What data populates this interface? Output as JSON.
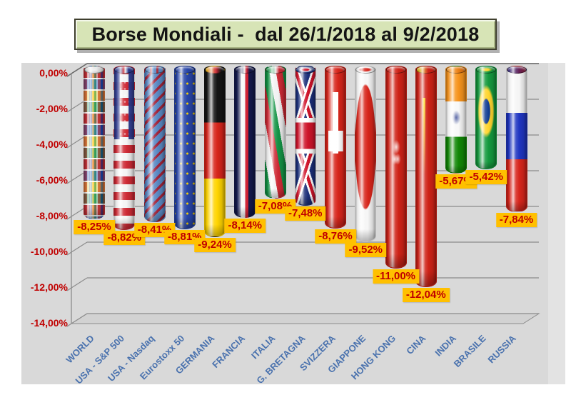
{
  "title": "Borse Mondiali -  dal 26/1/2018 al 9/2/2018",
  "colors": {
    "panel": "#d9d9d9",
    "grid": "#8c8c8c",
    "grid_top": "#666666",
    "floor_fill": "#d2d2d2",
    "y_label": "#c00000",
    "x_label": "#4a72ae",
    "value_bg": "#ffc000",
    "value_text": "#c00000",
    "title_bg": "#d7e4b6"
  },
  "chart_data": {
    "type": "bar",
    "title": "Borse Mondiali -  dal 26/1/2018 al 9/2/2018",
    "categories": [
      "WORLD",
      "USA - S&P 500",
      "USA - Nasdaq",
      "Eurostoxx 50",
      "GERMANIA",
      "FRANCIA",
      "ITALIA",
      "G. BRETAGNA",
      "SVIZZERA",
      "GIAPPONE",
      "HONG KONG",
      "CINA",
      "INDIA",
      "BRASILE",
      "RUSSIA"
    ],
    "values": [
      -8.25,
      -8.82,
      -8.41,
      -8.81,
      -9.24,
      -8.14,
      -7.08,
      -7.48,
      -8.76,
      -9.52,
      -11.0,
      -12.04,
      -5.67,
      -5.42,
      -7.84
    ],
    "value_labels": [
      "-8,25%",
      "-8,82%",
      "-8,41%",
      "-8,81%",
      "-9,24%",
      "-8,14%",
      "-7,08%",
      "-7,48%",
      "-8,76%",
      "-9,52%",
      "-11,00%",
      "-12,04%",
      "-5,67%",
      "-5,42%",
      "-7,84%"
    ],
    "flags": [
      "world",
      "usa",
      "nasdaq",
      "eu",
      "germany",
      "france",
      "italy",
      "uk",
      "swiss",
      "japan",
      "hk",
      "china",
      "india",
      "brazil",
      "russia"
    ],
    "xlabel": "",
    "ylabel": "",
    "ylim": [
      -14,
      0
    ],
    "yticks": [
      "0,00%",
      "-2,00%",
      "-4,00%",
      "-6,00%",
      "-8,00%",
      "-10,00%",
      "-12,00%",
      "-14,00%"
    ],
    "grid": true,
    "legend": false,
    "bar_style": "3d-cylinder-flags"
  }
}
